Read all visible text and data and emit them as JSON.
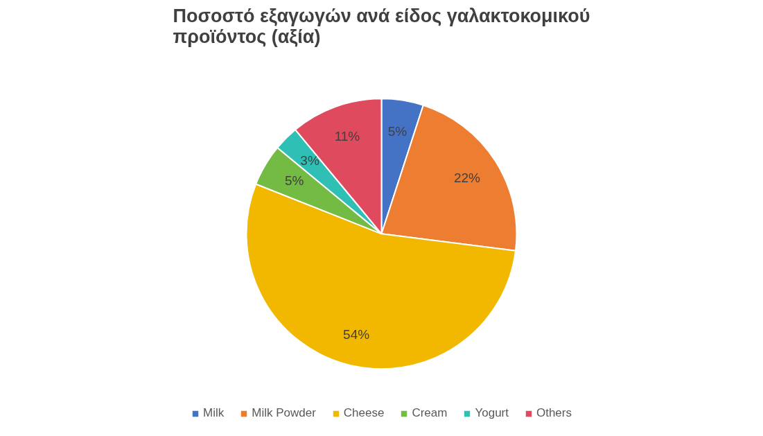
{
  "chart_data": {
    "type": "pie",
    "title": "Ποσοστό εξαγωγών ανά είδος γαλακτοκομικού προϊόντος (αξία)",
    "categories": [
      "Milk",
      "Milk Powder",
      "Cheese",
      "Cream",
      "Yogurt",
      "Others"
    ],
    "values": [
      5,
      22,
      54,
      5,
      3,
      11
    ],
    "colors": [
      "#4472c4",
      "#ed7d31",
      "#f2b800",
      "#74bb43",
      "#2fbfb5",
      "#e04a5e"
    ],
    "value_labels": [
      "5%",
      "22%",
      "54%",
      "5%",
      "3%",
      "11%"
    ],
    "legend": "bottom"
  }
}
